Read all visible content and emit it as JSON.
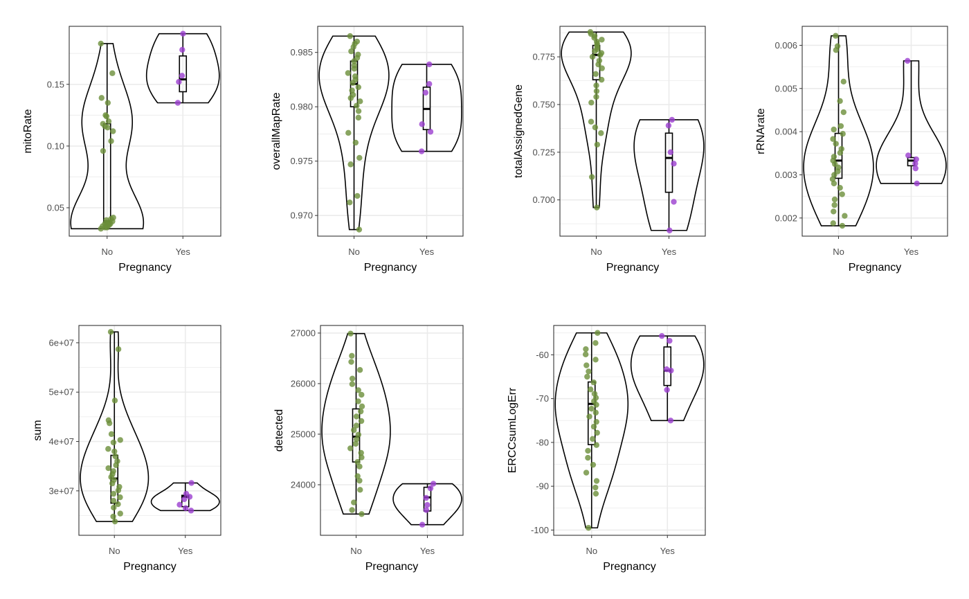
{
  "colors": {
    "No": "#6b8e3a",
    "Yes": "#9b3fcf",
    "grid": "#ebebeb",
    "panel_border": "#333333"
  },
  "chart_data": [
    {
      "type": "violin",
      "xlabel": "Pregnancy",
      "ylabel": "mitoRate",
      "categories": [
        "No",
        "Yes"
      ],
      "ylim": [
        0.027,
        0.197
      ],
      "yticks": [
        0.05,
        0.1,
        0.15
      ],
      "ytick_labels": [
        "0.05",
        "0.10",
        "0.15"
      ],
      "series": [
        {
          "values": [
            0.183,
            0.159,
            0.139,
            0.135,
            0.125,
            0.124,
            0.12,
            0.118,
            0.116,
            0.115,
            0.112,
            0.104,
            0.096,
            0.042,
            0.041,
            0.04,
            0.039,
            0.038,
            0.038,
            0.037,
            0.037,
            0.036,
            0.036,
            0.035,
            0.035,
            0.034,
            0.034,
            0.033
          ],
          "box": [
            0.038,
            0.039,
            0.118
          ]
        },
        {
          "values": [
            0.191,
            0.178,
            0.157,
            0.152,
            0.135
          ],
          "box": [
            0.144,
            0.154,
            0.173
          ]
        }
      ]
    },
    {
      "type": "violin",
      "xlabel": "Pregnancy",
      "ylabel": "overallMapRate",
      "categories": [
        "No",
        "Yes"
      ],
      "ylim": [
        0.9681,
        0.9874
      ],
      "yticks": [
        0.97,
        0.975,
        0.98,
        0.985
      ],
      "ytick_labels": [
        "0.970",
        "0.975",
        "0.980",
        "0.985"
      ],
      "series": [
        {
          "values": [
            0.9865,
            0.986,
            0.9858,
            0.9855,
            0.9851,
            0.9848,
            0.9845,
            0.9842,
            0.9838,
            0.9835,
            0.9831,
            0.9828,
            0.9825,
            0.9822,
            0.9818,
            0.9815,
            0.9811,
            0.9808,
            0.9805,
            0.9801,
            0.9796,
            0.979,
            0.9776,
            0.9767,
            0.9753,
            0.9747,
            0.9718,
            0.9712,
            0.9687
          ],
          "box": [
            0.98,
            0.9821,
            0.9842
          ]
        },
        {
          "values": [
            0.9839,
            0.9821,
            0.9813,
            0.9784,
            0.9777,
            0.9759
          ],
          "box": [
            0.9779,
            0.9798,
            0.9818
          ]
        }
      ]
    },
    {
      "type": "violin",
      "xlabel": "Pregnancy",
      "ylabel": "totalAssignedGene",
      "categories": [
        "No",
        "Yes"
      ],
      "ylim": [
        0.681,
        0.791
      ],
      "yticks": [
        0.7,
        0.725,
        0.75,
        0.775
      ],
      "ytick_labels": [
        "0.700",
        "0.725",
        "0.750",
        "0.775"
      ],
      "series": [
        {
          "values": [
            0.788,
            0.787,
            0.786,
            0.785,
            0.784,
            0.783,
            0.782,
            0.781,
            0.78,
            0.779,
            0.778,
            0.777,
            0.776,
            0.775,
            0.773,
            0.771,
            0.769,
            0.766,
            0.763,
            0.76,
            0.757,
            0.754,
            0.751,
            0.741,
            0.738,
            0.735,
            0.729,
            0.712,
            0.696
          ],
          "box": [
            0.763,
            0.776,
            0.781
          ]
        },
        {
          "values": [
            0.742,
            0.739,
            0.725,
            0.719,
            0.699,
            0.684
          ],
          "box": [
            0.704,
            0.722,
            0.735
          ]
        }
      ]
    },
    {
      "type": "violin",
      "xlabel": "Pregnancy",
      "ylabel": "rRNArate",
      "categories": [
        "No",
        "Yes"
      ],
      "ylim": [
        0.00158,
        0.00644
      ],
      "yticks": [
        0.002,
        0.003,
        0.004,
        0.005,
        0.006
      ],
      "ytick_labels": [
        "0.002",
        "0.003",
        "0.004",
        "0.005",
        "0.006"
      ],
      "series": [
        {
          "values": [
            0.00622,
            0.00598,
            0.00589,
            0.00516,
            0.00471,
            0.00445,
            0.00413,
            0.00405,
            0.00395,
            0.00383,
            0.00372,
            0.0036,
            0.00351,
            0.00342,
            0.00333,
            0.00325,
            0.00317,
            0.00308,
            0.003,
            0.0029,
            0.0028,
            0.0027,
            0.00255,
            0.00243,
            0.0023,
            0.00215,
            0.00205,
            0.00188,
            0.00182
          ],
          "box": [
            0.00292,
            0.00333,
            0.00396
          ]
        },
        {
          "values": [
            0.00564,
            0.00345,
            0.00336,
            0.00326,
            0.00315,
            0.0028
          ],
          "box": [
            0.00321,
            0.00333,
            0.0034
          ]
        }
      ]
    },
    {
      "type": "violin",
      "xlabel": "Pregnancy",
      "ylabel": "sum",
      "categories": [
        "No",
        "Yes"
      ],
      "ylim": [
        21000000,
        63500000
      ],
      "yticks": [
        30000000,
        40000000,
        50000000,
        60000000
      ],
      "ytick_labels": [
        "3e+07",
        "4e+07",
        "5e+07",
        "6e+07"
      ],
      "series": [
        {
          "values": [
            62200000,
            58700000,
            48300000,
            44300000,
            43700000,
            41500000,
            40300000,
            39800000,
            38500000,
            38000000,
            37000000,
            36000000,
            35200000,
            34600000,
            34000000,
            33400000,
            32800000,
            32200000,
            31500000,
            30800000,
            30100000,
            29400000,
            28700000,
            28000000,
            27300000,
            26600000,
            25400000,
            24800000,
            23800000
          ],
          "box": [
            27500000,
            32500000,
            37200000
          ]
        },
        {
          "values": [
            31600000,
            29400000,
            28800000,
            28300000,
            27200000,
            26500000,
            26000000
          ],
          "box": [
            26800000,
            28800000,
            29100000
          ]
        }
      ]
    },
    {
      "type": "violin",
      "xlabel": "Pregnancy",
      "ylabel": "detected",
      "categories": [
        "No",
        "Yes"
      ],
      "ylim": [
        23000,
        27150
      ],
      "yticks": [
        24000,
        25000,
        26000,
        27000
      ],
      "ytick_labels": [
        "24000",
        "25000",
        "26000",
        "27000"
      ],
      "series": [
        {
          "values": [
            26990,
            26550,
            26430,
            26270,
            26100,
            25990,
            25870,
            25780,
            25650,
            25550,
            25450,
            25350,
            25260,
            25170,
            25080,
            24990,
            24900,
            24810,
            24720,
            24630,
            24540,
            24450,
            24360,
            24170,
            24080,
            23900,
            23650,
            23500,
            23420
          ],
          "box": [
            24450,
            24950,
            25500
          ]
        },
        {
          "values": [
            24020,
            23930,
            23740,
            23600,
            23500,
            23210
          ],
          "box": [
            23480,
            23750,
            23950
          ]
        }
      ]
    },
    {
      "type": "violin",
      "xlabel": "Pregnancy",
      "ylabel": "ERCCsumLogErr",
      "categories": [
        "No",
        "Yes"
      ],
      "ylim": [
        -101.2,
        -53.3
      ],
      "yticks": [
        -100,
        -90,
        -80,
        -70,
        -60
      ],
      "ytick_labels": [
        "-100",
        "-90",
        "-80",
        "-70",
        "-60"
      ],
      "series": [
        {
          "values": [
            -55.0,
            -57.3,
            -58.7,
            -59.9,
            -61.1,
            -62.4,
            -63.8,
            -65.0,
            -66.3,
            -67.9,
            -68.9,
            -69.8,
            -70.6,
            -71.4,
            -72.3,
            -73.2,
            -74.1,
            -75.3,
            -76.4,
            -77.8,
            -79.2,
            -80.6,
            -81.9,
            -83.5,
            -85.1,
            -86.9,
            -88.8,
            -90.3,
            -91.7,
            -99.5
          ],
          "box": [
            -80.5,
            -71.2,
            -66.2
          ]
        },
        {
          "values": [
            -55.7,
            -56.8,
            -63.3,
            -63.6,
            -68.0,
            -75.0
          ],
          "box": [
            -67.0,
            -63.6,
            -58.2
          ]
        }
      ]
    }
  ]
}
